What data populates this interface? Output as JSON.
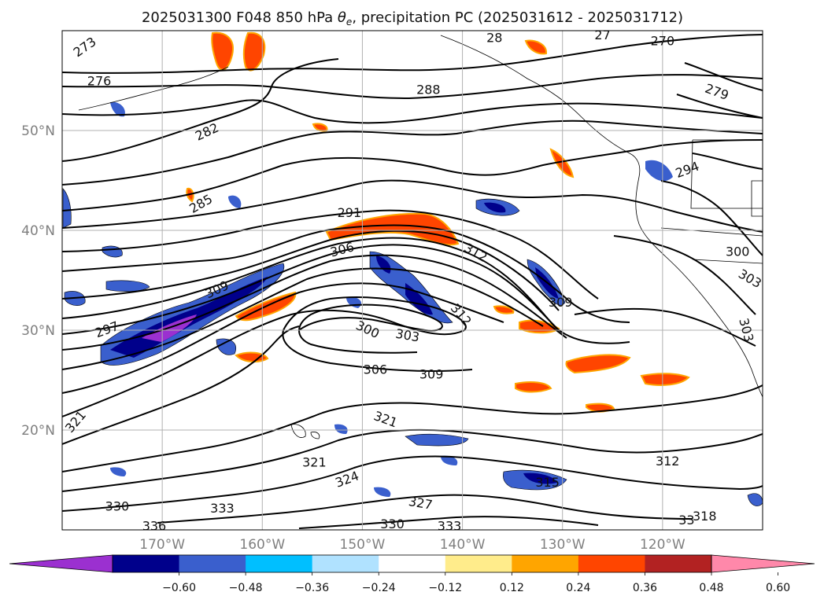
{
  "title": {
    "pre": "2025031300 F048 850 hPa ",
    "theta": "θ",
    "sub": "e",
    "post": ", precipitation PC (2025031612 - 2025031712)"
  },
  "map": {
    "lon_range": [
      -180,
      -110
    ],
    "lat_range": [
      10,
      60
    ],
    "lon_ticks": [
      {
        "value": -170,
        "label": "170°W"
      },
      {
        "value": -160,
        "label": "160°W"
      },
      {
        "value": -150,
        "label": "150°W"
      },
      {
        "value": -140,
        "label": "140°W"
      },
      {
        "value": -130,
        "label": "130°W"
      },
      {
        "value": -120,
        "label": "120°W"
      }
    ],
    "lat_ticks": [
      {
        "value": 50,
        "label": "50°N"
      },
      {
        "value": 40,
        "label": "40°N"
      },
      {
        "value": 30,
        "label": "30°N"
      },
      {
        "value": 20,
        "label": "20°N"
      }
    ],
    "grid": true,
    "contour_labels": [
      {
        "text": "273",
        "lon": -177.7,
        "lat": 58.3,
        "rot": -35
      },
      {
        "text": "276",
        "lon": -176.3,
        "lat": 54.9,
        "rot": 0
      },
      {
        "text": "282",
        "lon": -165.5,
        "lat": 49.8,
        "rot": -25
      },
      {
        "text": "285",
        "lon": -166.1,
        "lat": 42.6,
        "rot": -30
      },
      {
        "text": "288",
        "lon": -143.4,
        "lat": 54.0,
        "rot": 0
      },
      {
        "text": "270",
        "lon": -120.0,
        "lat": 58.9,
        "rot": 0
      },
      {
        "text": "279",
        "lon": -114.6,
        "lat": 53.8,
        "rot": 20
      },
      {
        "text": "294",
        "lon": -117.5,
        "lat": 46.0,
        "rot": -20
      },
      {
        "text": "291",
        "lon": -151.3,
        "lat": 41.7,
        "rot": 0
      },
      {
        "text": "300",
        "lon": -112.5,
        "lat": 37.8,
        "rot": 0
      },
      {
        "text": "306",
        "lon": -152.0,
        "lat": 38.0,
        "rot": -15
      },
      {
        "text": "312",
        "lon": -138.7,
        "lat": 37.7,
        "rot": 30
      },
      {
        "text": "309",
        "lon": -164.5,
        "lat": 34.0,
        "rot": -25
      },
      {
        "text": "312",
        "lon": -140.2,
        "lat": 31.5,
        "rot": 50
      },
      {
        "text": "309",
        "lon": -130.2,
        "lat": 32.7,
        "rot": 0
      },
      {
        "text": "303",
        "lon": -111.3,
        "lat": 35.1,
        "rot": 30
      },
      {
        "text": "303",
        "lon": -111.7,
        "lat": 30.0,
        "rot": 75
      },
      {
        "text": "297",
        "lon": -175.5,
        "lat": 30.0,
        "rot": -20
      },
      {
        "text": "300",
        "lon": -149.5,
        "lat": 30.0,
        "rot": 25
      },
      {
        "text": "303",
        "lon": -145.5,
        "lat": 29.4,
        "rot": 10
      },
      {
        "text": "306",
        "lon": -148.7,
        "lat": 26.0,
        "rot": 0
      },
      {
        "text": "309",
        "lon": -143.1,
        "lat": 25.5,
        "rot": 0
      },
      {
        "text": "321",
        "lon": -178.6,
        "lat": 20.8,
        "rot": -50
      },
      {
        "text": "321",
        "lon": -147.7,
        "lat": 21.0,
        "rot": 20
      },
      {
        "text": "321",
        "lon": -154.8,
        "lat": 16.7,
        "rot": 0
      },
      {
        "text": "324",
        "lon": -151.5,
        "lat": 15.0,
        "rot": -20
      },
      {
        "text": "312",
        "lon": -119.5,
        "lat": 16.8,
        "rot": 0
      },
      {
        "text": "315",
        "lon": -131.5,
        "lat": 14.7,
        "rot": 0
      },
      {
        "text": "327",
        "lon": -144.2,
        "lat": 12.6,
        "rot": 10
      },
      {
        "text": "330",
        "lon": -174.5,
        "lat": 12.3,
        "rot": 0
      },
      {
        "text": "333",
        "lon": -164.0,
        "lat": 12.1,
        "rot": 0
      },
      {
        "text": "336",
        "lon": -170.8,
        "lat": 10.3,
        "rot": 0
      },
      {
        "text": "330",
        "lon": -147.0,
        "lat": 10.5,
        "rot": 0
      },
      {
        "text": "333",
        "lon": -141.3,
        "lat": 10.3,
        "rot": 0
      },
      {
        "text": "318",
        "lon": -115.8,
        "lat": 11.3,
        "rot": 0
      },
      {
        "text": "33",
        "lon": -117.6,
        "lat": 10.9,
        "rot": 0
      },
      {
        "text": "28",
        "lon": -136.8,
        "lat": 59.2,
        "rot": 0
      },
      {
        "text": "27",
        "lon": -126.0,
        "lat": 59.5,
        "rot": 0
      }
    ]
  },
  "colorbar": {
    "colors": [
      "#9b30d0",
      "#00008b",
      "#3a5fcd",
      "#00bfff",
      "#b0e2ff",
      "#ffffff",
      "#ffec8b",
      "#ffa500",
      "#ff4500",
      "#b22222",
      "#ff88aa"
    ],
    "ticks": [
      "−0.60",
      "−0.48",
      "−0.36",
      "−0.24",
      "−0.12",
      "0.12",
      "0.24",
      "0.36",
      "0.48",
      "0.60"
    ]
  }
}
